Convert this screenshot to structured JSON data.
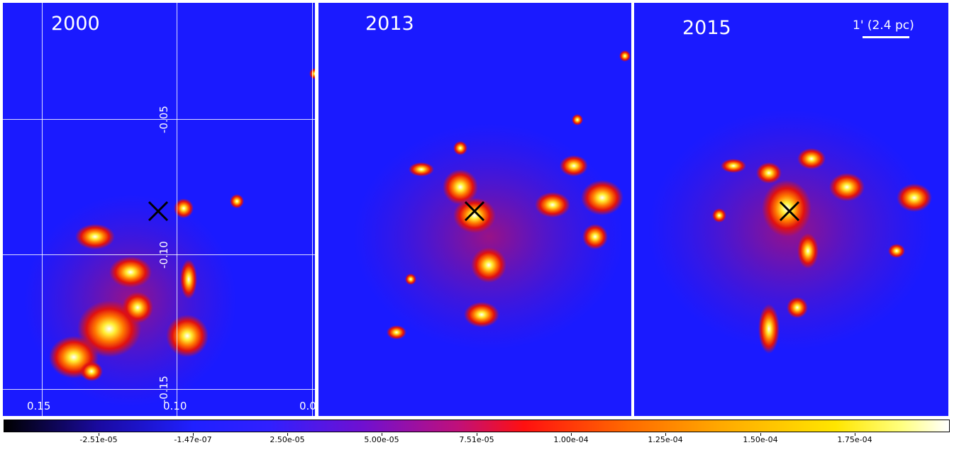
{
  "panels": [
    {
      "year": "2000"
    },
    {
      "year": "2013"
    },
    {
      "year": "2015"
    }
  ],
  "axes": {
    "x_ticks": [
      "0.15",
      "0.10",
      "0.0"
    ],
    "y_ticks": [
      "-0.05",
      "-0.10",
      "-0.15"
    ]
  },
  "scale_bar": {
    "label": "1' (2.4 pc)"
  },
  "colorbar": {
    "labels": [
      "-2.51e-05",
      "-1.47e-07",
      "2.50e-05",
      "5.00e-05",
      "7.51e-05",
      "1.00e-04",
      "1.25e-04",
      "1.50e-04",
      "1.75e-04"
    ]
  },
  "colors": {
    "background": "#1a1aff",
    "marker": "#000000"
  }
}
